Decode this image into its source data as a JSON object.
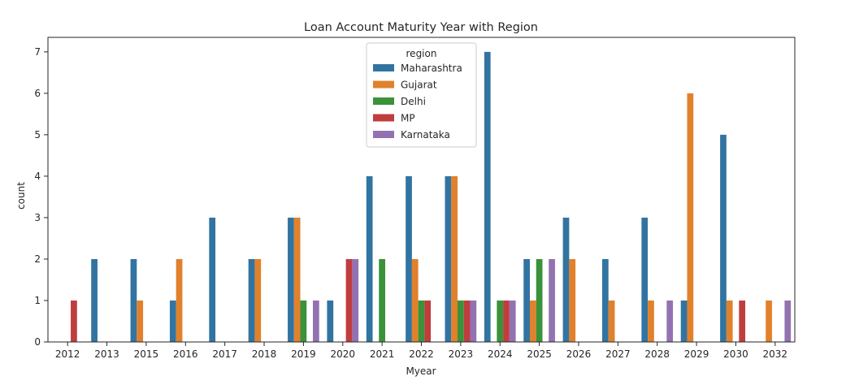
{
  "chart_data": {
    "type": "bar",
    "title": "Loan Account Maturity Year with Region",
    "xlabel": "Myear",
    "ylabel": "count",
    "ylim": [
      0,
      7.35
    ],
    "yticks": [
      "0",
      "1",
      "2",
      "3",
      "4",
      "5",
      "6",
      "7"
    ],
    "grid": false,
    "legend_title": "region",
    "legend_position": "top-center",
    "categories": [
      "2012",
      "2013",
      "2015",
      "2016",
      "2017",
      "2018",
      "2019",
      "2020",
      "2021",
      "2022",
      "2023",
      "2024",
      "2025",
      "2026",
      "2027",
      "2028",
      "2029",
      "2030",
      "2032"
    ],
    "series": [
      {
        "name": "Maharashtra",
        "color": "#3274a1",
        "values": [
          0,
          2,
          2,
          1,
          3,
          2,
          3,
          1,
          4,
          4,
          4,
          7,
          2,
          3,
          2,
          3,
          1,
          5,
          0
        ]
      },
      {
        "name": "Gujarat",
        "color": "#e1812c",
        "values": [
          0,
          0,
          1,
          2,
          0,
          2,
          3,
          0,
          0,
          2,
          4,
          0,
          1,
          2,
          1,
          1,
          6,
          1,
          1
        ]
      },
      {
        "name": "Delhi",
        "color": "#3a923a",
        "values": [
          0,
          0,
          0,
          0,
          0,
          0,
          1,
          0,
          2,
          1,
          1,
          1,
          2,
          0,
          0,
          0,
          0,
          0,
          0
        ]
      },
      {
        "name": "MP",
        "color": "#c03d3e",
        "values": [
          1,
          0,
          0,
          0,
          0,
          0,
          0,
          2,
          0,
          1,
          1,
          1,
          0,
          0,
          0,
          0,
          0,
          1,
          0
        ]
      },
      {
        "name": "Karnataka",
        "color": "#9372b2",
        "values": [
          0,
          0,
          0,
          0,
          0,
          0,
          1,
          2,
          0,
          0,
          1,
          1,
          2,
          0,
          0,
          1,
          0,
          0,
          1
        ]
      }
    ]
  }
}
